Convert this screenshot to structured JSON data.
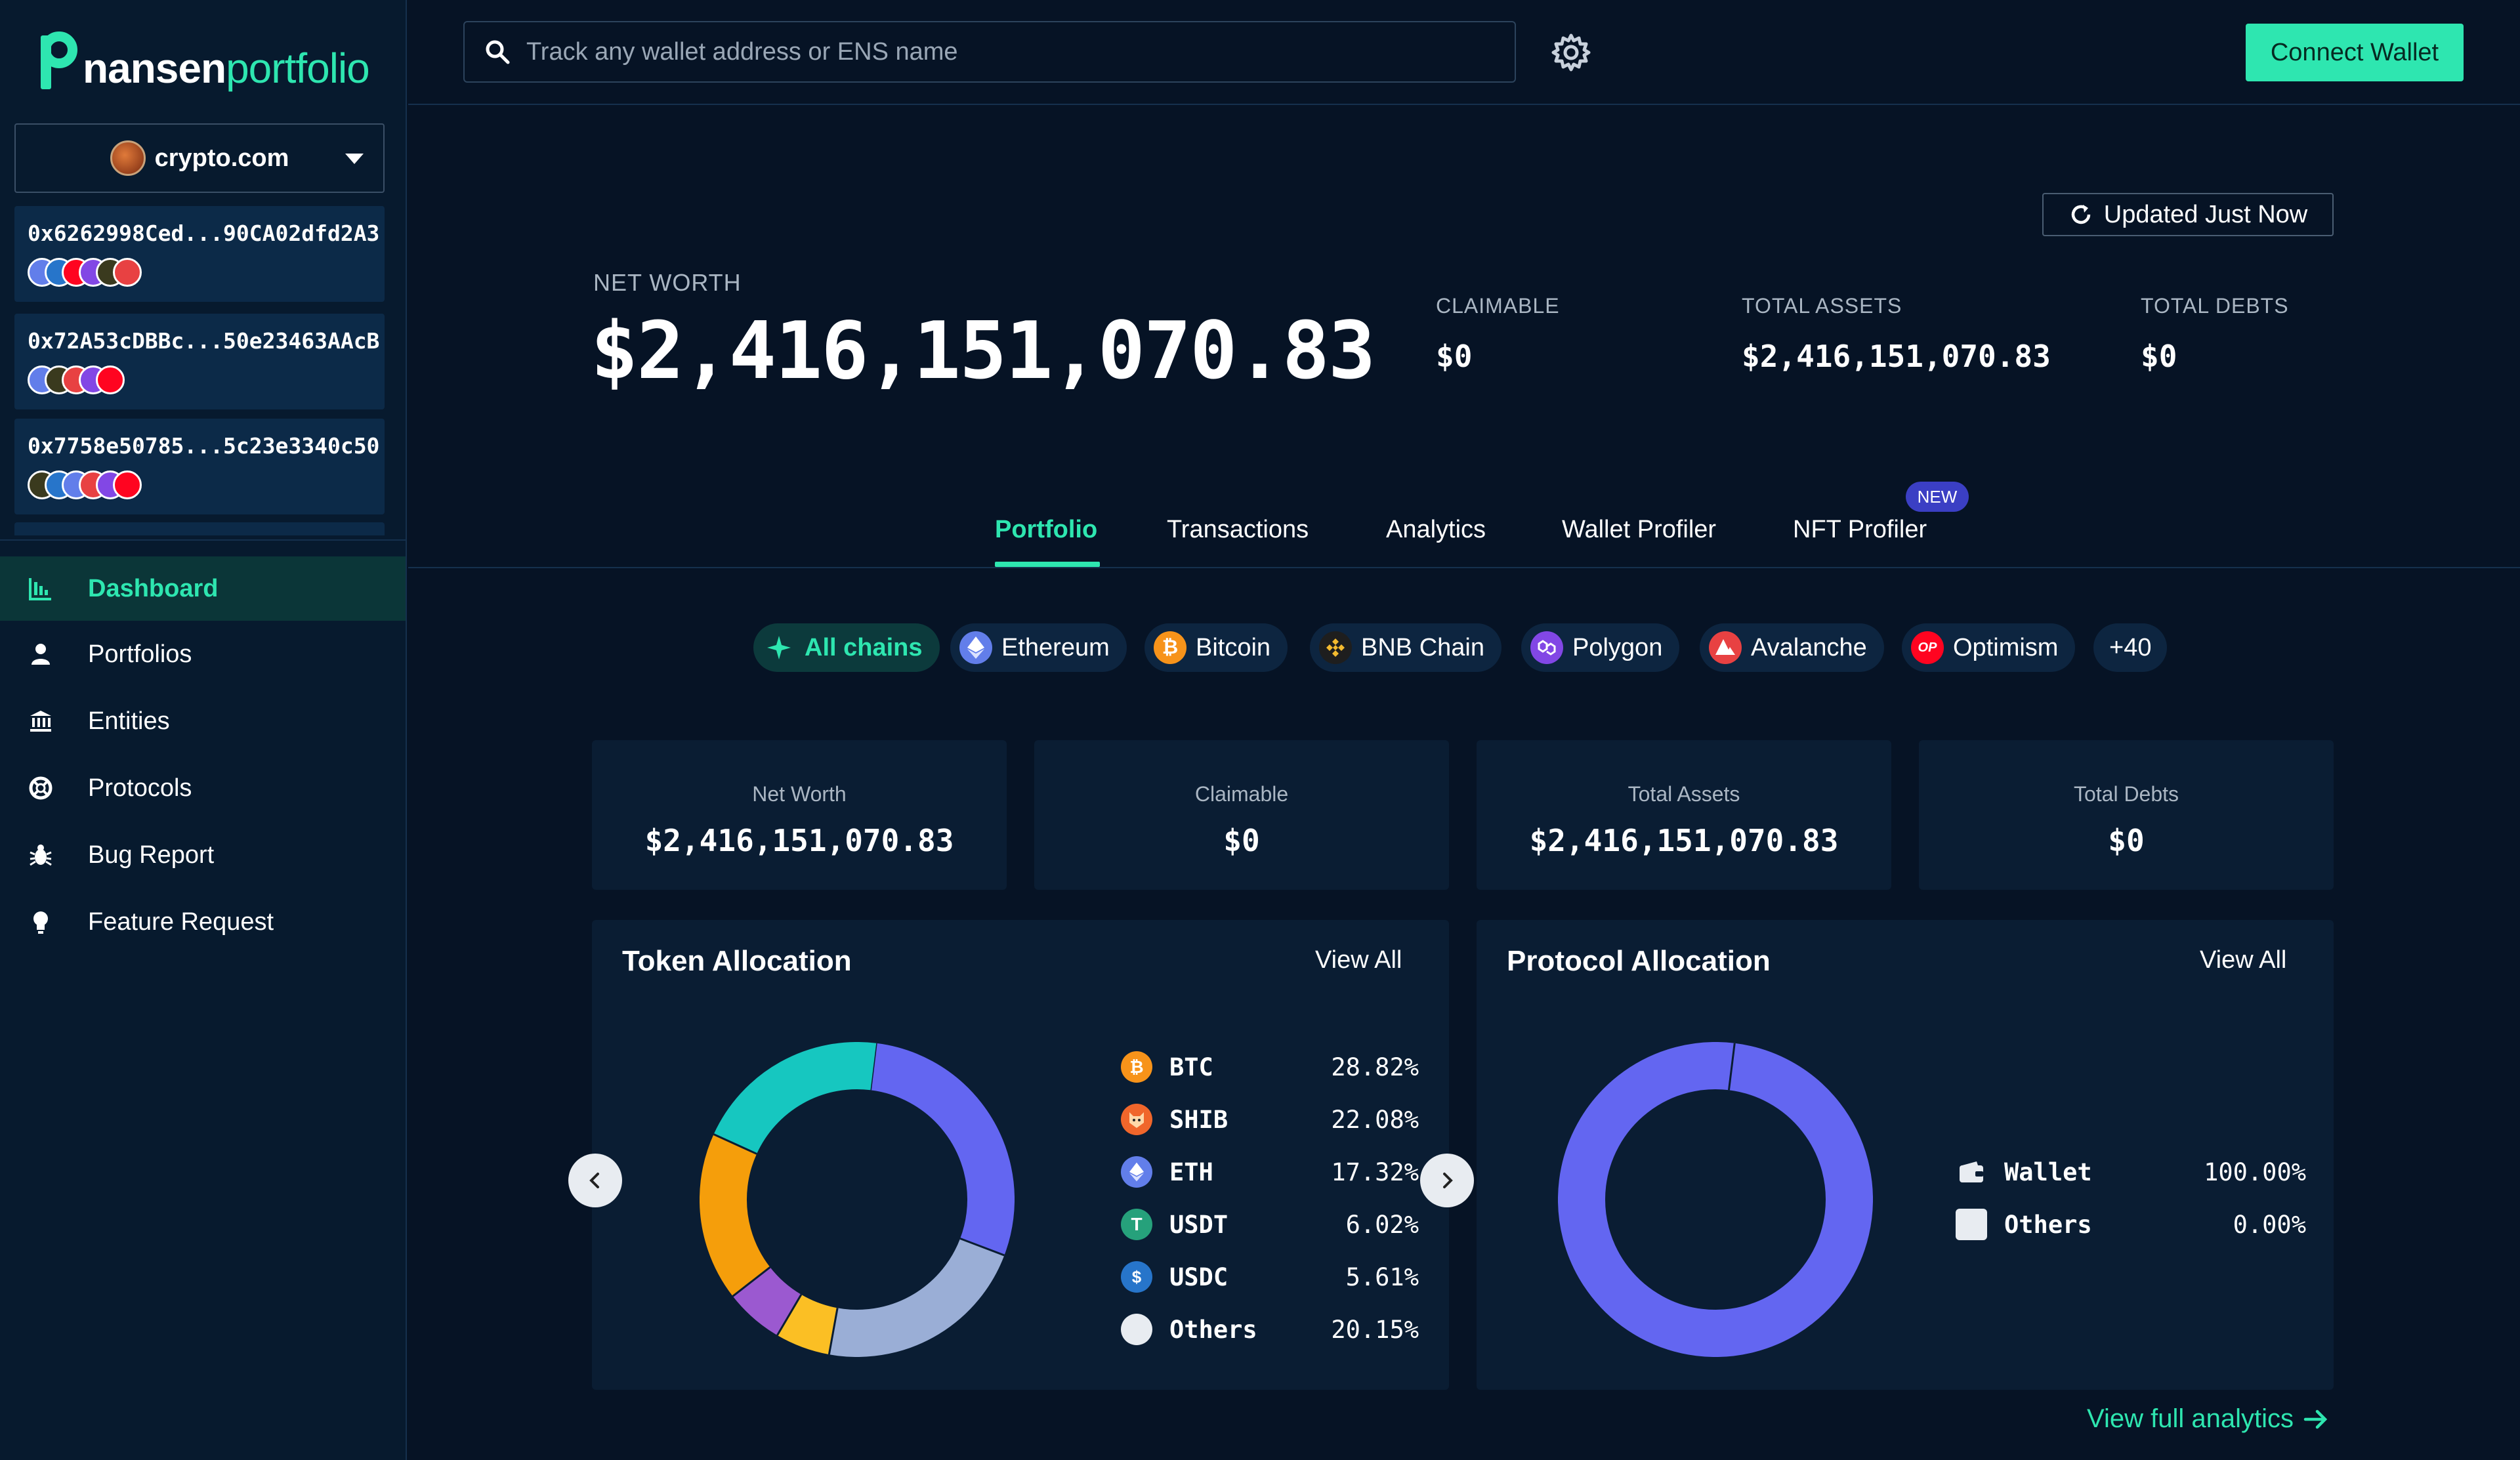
{
  "brand": {
    "part1": "nansen",
    "part2": "portfolio"
  },
  "entity": {
    "name": "crypto.com"
  },
  "wallets": [
    {
      "address": "0x6262998Ced...90CA02dfd2A3",
      "chains": [
        "ETH",
        "BTC",
        "OP",
        "POL",
        "BNB",
        "AVAX"
      ]
    },
    {
      "address": "0x72A53cDBBc...50e23463AAcB",
      "chains": [
        "ETH",
        "BNB",
        "AVAX",
        "POL",
        "OP"
      ]
    },
    {
      "address": "0x7758e50785...5c23e3340c50",
      "chains": [
        "BNB",
        "BTC",
        "ETH",
        "AVAX",
        "POL",
        "OP"
      ]
    }
  ],
  "nav": [
    {
      "label": "Dashboard",
      "icon": "bar-chart-icon",
      "active": true
    },
    {
      "label": "Portfolios",
      "icon": "user-icon",
      "active": false
    },
    {
      "label": "Entities",
      "icon": "bank-icon",
      "active": false
    },
    {
      "label": "Protocols",
      "icon": "lifebuoy-icon",
      "active": false
    },
    {
      "label": "Bug Report",
      "icon": "bug-icon",
      "active": false
    },
    {
      "label": "Feature Request",
      "icon": "lightbulb-icon",
      "active": false
    }
  ],
  "search": {
    "placeholder": "Track any wallet address or ENS name"
  },
  "header": {
    "connect_label": "Connect Wallet"
  },
  "updated_label": "Updated Just Now",
  "summary": {
    "net_worth_label": "NET WORTH",
    "net_worth": "$2,416,151,070.83",
    "claimable_label": "CLAIMABLE",
    "claimable": "$0",
    "assets_label": "TOTAL ASSETS",
    "assets": "$2,416,151,070.83",
    "debts_label": "TOTAL DEBTS",
    "debts": "$0"
  },
  "tabs": [
    "Portfolio",
    "Transactions",
    "Analytics",
    "Wallet Profiler",
    "NFT Profiler"
  ],
  "new_badge": "NEW",
  "chains": [
    {
      "label": "All chains",
      "color": "#0c3a3c"
    },
    {
      "label": "Ethereum",
      "color": "#627eea"
    },
    {
      "label": "Bitcoin",
      "color": "#f7931a"
    },
    {
      "label": "BNB Chain",
      "color": "#1e1e1e"
    },
    {
      "label": "Polygon",
      "color": "#8247e5"
    },
    {
      "label": "Avalanche",
      "color": "#e84142"
    },
    {
      "label": "Optimism",
      "color": "#ff0420"
    },
    {
      "label": "+40",
      "color": "#0d2540"
    }
  ],
  "mini_stats": [
    {
      "label": "Net Worth",
      "value": "$2,416,151,070.83"
    },
    {
      "label": "Claimable",
      "value": "$0"
    },
    {
      "label": "Total Assets",
      "value": "$2,416,151,070.83"
    },
    {
      "label": "Total Debts",
      "value": "$0"
    }
  ],
  "token_allocation": {
    "title": "Token Allocation",
    "view_all": "View All",
    "items": [
      {
        "symbol": "BTC",
        "pct": "28.82%",
        "value": 28.82,
        "color": "#6366f1",
        "icon_color": "#f7931a"
      },
      {
        "symbol": "SHIB",
        "pct": "22.08%",
        "value": 22.08,
        "color": "#9aaed6",
        "icon_color": "#f0662b"
      },
      {
        "symbol": "ETH",
        "pct": "17.32%",
        "value": 17.32,
        "color": "#f59e0b",
        "icon_color": "#627eea"
      },
      {
        "symbol": "USDT",
        "pct": "6.02%",
        "value": 6.02,
        "color": "#9b59d0",
        "icon_color": "#26a17b"
      },
      {
        "symbol": "USDC",
        "pct": "5.61%",
        "value": 5.61,
        "color": "#fbbf24",
        "icon_color": "#2775ca"
      },
      {
        "symbol": "Others",
        "pct": "20.15%",
        "value": 20.15,
        "color": "#16c7c0",
        "icon_color": "#e8ecf1"
      }
    ]
  },
  "protocol_allocation": {
    "title": "Protocol Allocation",
    "view_all": "View All",
    "items": [
      {
        "name": "Wallet",
        "pct": "100.00%",
        "value": 100,
        "color": "#6366f1"
      },
      {
        "name": "Others",
        "pct": "0.00%",
        "value": 0,
        "color": "#e8ecf1"
      }
    ]
  },
  "full_analytics": "View full analytics"
}
